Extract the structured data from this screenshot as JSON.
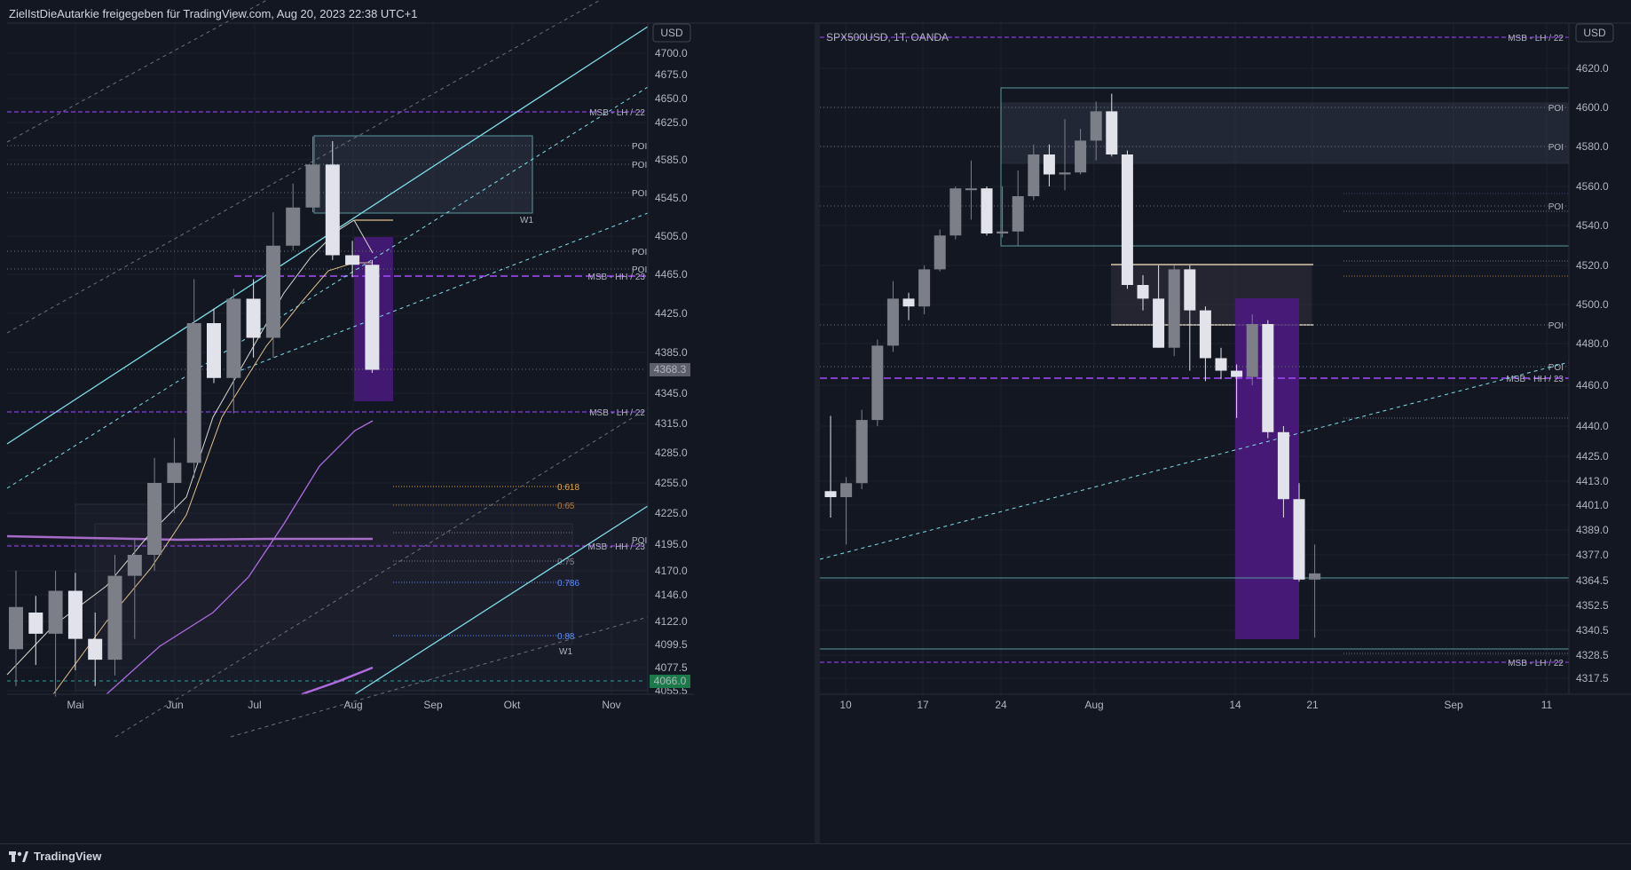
{
  "header": {
    "text": "ZielIstDieAutarkie freigegeben für TradingView.com, Aug 20, 2023 22:38 UTC+1"
  },
  "footer": {
    "brand": "TradingView"
  },
  "colors": {
    "bg": "#131722",
    "up": "#7d7f88",
    "down": "#e2e3ea",
    "msb": "#a64cff",
    "channel": "#7fe0ec",
    "purpleBox": "#4b1a7e",
    "fib618": "#e8a93a",
    "fib786": "#5b8cff"
  },
  "left": {
    "currency": "USD",
    "price_ticks": [
      "4700.0",
      "4675.0",
      "4650.0",
      "4625.0",
      "4585.0",
      "4545.0",
      "4505.0",
      "4465.0",
      "4425.0",
      "4385.0",
      "4345.0",
      "4315.0",
      "4285.0",
      "4255.0",
      "4225.0",
      "4195.0",
      "4170.0",
      "4146.0",
      "4122.0",
      "4099.5",
      "4077.5",
      "4055.5"
    ],
    "time_ticks": [
      "Mai",
      "Jun",
      "Jul",
      "Aug",
      "Sep",
      "Okt",
      "Nov"
    ],
    "last_price": "4368.3",
    "alt_price": "4066.0",
    "labels": {
      "poi": "POI",
      "msb_lh": "MSB - LH / 22",
      "msb_hh": "MSB - HH / 23",
      "msb_lh2": "MSB - LH / 22",
      "w1": "W1"
    },
    "fib_labels": [
      "0.618",
      "0.65",
      "0.75",
      "0.786",
      "0.88"
    ]
  },
  "right": {
    "currency": "USD",
    "title": "SPX500USD, 1T, OANDA",
    "price_ticks": [
      "4620.0",
      "4600.0",
      "4580.0",
      "4560.0",
      "4540.0",
      "4520.0",
      "4500.0",
      "4480.0",
      "4460.0",
      "4440.0",
      "4425.0",
      "4413.0",
      "4401.0",
      "4389.0",
      "4377.0",
      "4364.5",
      "4352.5",
      "4340.5",
      "4328.5",
      "4317.5"
    ],
    "time_ticks": [
      "10",
      "17",
      "24",
      "Aug",
      "14",
      "21",
      "Sep",
      "11"
    ],
    "labels": {
      "poi": "POI",
      "msb_lh": "MSB - LH / 22",
      "msb_hh": "MSB - HH / 23"
    }
  },
  "chart_data": [
    {
      "type": "candlestick",
      "title": "",
      "timeframe": "weekly",
      "x_ticks": [
        "Mai",
        "Jun",
        "Jul",
        "Aug",
        "Sep",
        "Okt",
        "Nov"
      ],
      "y_range": [
        4055.5,
        4700.0
      ],
      "candles": [
        {
          "o": 4095,
          "h": 4170,
          "l": 4060,
          "c": 4135
        },
        {
          "o": 4130,
          "h": 4145,
          "l": 4080,
          "c": 4110
        },
        {
          "o": 4110,
          "h": 4170,
          "l": 4050,
          "c": 4150
        },
        {
          "o": 4150,
          "h": 4168,
          "l": 4075,
          "c": 4105
        },
        {
          "o": 4105,
          "h": 4130,
          "l": 4060,
          "c": 4085
        },
        {
          "o": 4085,
          "h": 4185,
          "l": 4070,
          "c": 4165
        },
        {
          "o": 4165,
          "h": 4200,
          "l": 4105,
          "c": 4185
        },
        {
          "o": 4185,
          "h": 4280,
          "l": 4170,
          "c": 4255
        },
        {
          "o": 4255,
          "h": 4300,
          "l": 4225,
          "c": 4275
        },
        {
          "o": 4275,
          "h": 4460,
          "l": 4260,
          "c": 4415
        },
        {
          "o": 4415,
          "h": 4430,
          "l": 4355,
          "c": 4360
        },
        {
          "o": 4360,
          "h": 4450,
          "l": 4325,
          "c": 4440
        },
        {
          "o": 4440,
          "h": 4460,
          "l": 4380,
          "c": 4400
        },
        {
          "o": 4400,
          "h": 4530,
          "l": 4380,
          "c": 4495
        },
        {
          "o": 4495,
          "h": 4560,
          "l": 4490,
          "c": 4535
        },
        {
          "o": 4535,
          "h": 4610,
          "l": 4530,
          "c": 4580
        },
        {
          "o": 4580,
          "h": 4605,
          "l": 4480,
          "c": 4485
        },
        {
          "o": 4485,
          "h": 4500,
          "l": 4462,
          "c": 4475
        },
        {
          "o": 4475,
          "h": 4480,
          "l": 4365,
          "c": 4368
        }
      ]
    },
    {
      "type": "candlestick",
      "title": "SPX500USD, 1T, OANDA",
      "timeframe": "daily",
      "x_ticks": [
        "10",
        "17",
        "24",
        "Aug",
        "14",
        "21",
        "Sep",
        "11"
      ],
      "y_range": [
        4317.5,
        4620.0
      ],
      "candles": [
        {
          "o": 4408,
          "h": 4445,
          "l": 4395,
          "c": 4405
        },
        {
          "o": 4405,
          "h": 4415,
          "l": 4382,
          "c": 4412
        },
        {
          "o": 4412,
          "h": 4448,
          "l": 4409,
          "c": 4443
        },
        {
          "o": 4443,
          "h": 4482,
          "l": 4440,
          "c": 4479
        },
        {
          "o": 4479,
          "h": 4512,
          "l": 4476,
          "c": 4503
        },
        {
          "o": 4503,
          "h": 4506,
          "l": 4492,
          "c": 4499
        },
        {
          "o": 4499,
          "h": 4520,
          "l": 4495,
          "c": 4518
        },
        {
          "o": 4518,
          "h": 4538,
          "l": 4517,
          "c": 4535
        },
        {
          "o": 4535,
          "h": 4560,
          "l": 4533,
          "c": 4559
        },
        {
          "o": 4559,
          "h": 4573,
          "l": 4543,
          "c": 4559
        },
        {
          "o": 4559,
          "h": 4560,
          "l": 4535,
          "c": 4536
        },
        {
          "o": 4536,
          "h": 4560,
          "l": 4534,
          "c": 4537
        },
        {
          "o": 4537,
          "h": 4568,
          "l": 4530,
          "c": 4555
        },
        {
          "o": 4555,
          "h": 4581,
          "l": 4553,
          "c": 4576
        },
        {
          "o": 4576,
          "h": 4581,
          "l": 4560,
          "c": 4566
        },
        {
          "o": 4566,
          "h": 4594,
          "l": 4558,
          "c": 4567
        },
        {
          "o": 4567,
          "h": 4589,
          "l": 4566,
          "c": 4583
        },
        {
          "o": 4583,
          "h": 4603,
          "l": 4573,
          "c": 4598
        },
        {
          "o": 4598,
          "h": 4607,
          "l": 4575,
          "c": 4576
        },
        {
          "o": 4576,
          "h": 4578,
          "l": 4508,
          "c": 4510
        },
        {
          "o": 4510,
          "h": 4515,
          "l": 4497,
          "c": 4503
        },
        {
          "o": 4503,
          "h": 4520,
          "l": 4478,
          "c": 4478
        },
        {
          "o": 4478,
          "h": 4520,
          "l": 4474,
          "c": 4518
        },
        {
          "o": 4518,
          "h": 4520,
          "l": 4467,
          "c": 4497
        },
        {
          "o": 4497,
          "h": 4499,
          "l": 4462,
          "c": 4473
        },
        {
          "o": 4473,
          "h": 4478,
          "l": 4463,
          "c": 4467
        },
        {
          "o": 4467,
          "h": 4470,
          "l": 4444,
          "c": 4464
        },
        {
          "o": 4464,
          "h": 4495,
          "l": 4460,
          "c": 4490
        },
        {
          "o": 4490,
          "h": 4492,
          "l": 4434,
          "c": 4437
        },
        {
          "o": 4437,
          "h": 4440,
          "l": 4395,
          "c": 4404
        },
        {
          "o": 4404,
          "h": 4412,
          "l": 4364,
          "c": 4365
        },
        {
          "o": 4365,
          "h": 4382,
          "l": 4337,
          "c": 4368
        }
      ]
    }
  ]
}
